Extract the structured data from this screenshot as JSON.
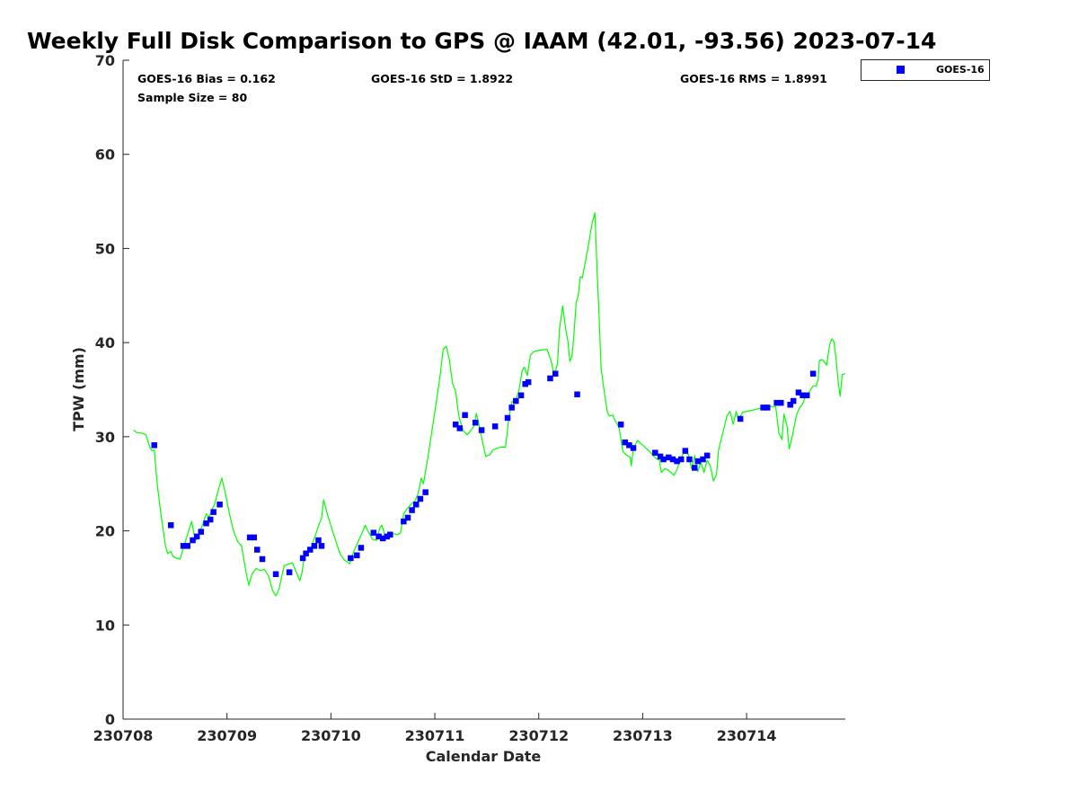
{
  "chart_data": {
    "type": "scatter",
    "title": "Weekly Full Disk Comparison to GPS @ IAAM (42.01, -93.56) 2023-07-14",
    "xlabel": "Calendar Date",
    "ylabel": "TPW (mm)",
    "xlim": [
      0,
      6.95
    ],
    "ylim": [
      0,
      70
    ],
    "x_units": "days after 230708",
    "x_ticks": [
      0,
      1,
      2,
      3,
      4,
      5,
      6
    ],
    "x_tick_labels": [
      "230708",
      "230709",
      "230710",
      "230711",
      "230712",
      "230713",
      "230714"
    ],
    "y_ticks": [
      0,
      10,
      20,
      30,
      40,
      50,
      60,
      70
    ],
    "y_tick_labels": [
      "0",
      "10",
      "20",
      "30",
      "40",
      "50",
      "60",
      "70"
    ],
    "grid": false,
    "legend_position": "top-right",
    "stats": {
      "bias": "GOES-16 Bias = 0.162",
      "std": "GOES-16 StD = 1.8922",
      "rms": "GOES-16 RMS = 1.8991",
      "sample_size": "Sample Size = 80"
    },
    "series": [
      {
        "name": "GOES-16",
        "type": "scatter",
        "color": "#0000ff",
        "marker": "square",
        "points": [
          [
            0.3,
            29.1
          ],
          [
            0.46,
            20.6
          ],
          [
            0.58,
            18.4
          ],
          [
            0.62,
            18.4
          ],
          [
            0.67,
            19.0
          ],
          [
            0.71,
            19.4
          ],
          [
            0.75,
            19.9
          ],
          [
            0.8,
            20.8
          ],
          [
            0.84,
            21.2
          ],
          [
            0.87,
            22.0
          ],
          [
            0.93,
            22.8
          ],
          [
            1.22,
            19.3
          ],
          [
            1.26,
            19.3
          ],
          [
            1.29,
            18.0
          ],
          [
            1.34,
            17.0
          ],
          [
            1.47,
            15.4
          ],
          [
            1.6,
            15.6
          ],
          [
            1.73,
            17.1
          ],
          [
            1.76,
            17.6
          ],
          [
            1.8,
            18.0
          ],
          [
            1.84,
            18.4
          ],
          [
            1.88,
            19.0
          ],
          [
            1.91,
            18.4
          ],
          [
            2.19,
            17.1
          ],
          [
            2.25,
            17.4
          ],
          [
            2.29,
            18.2
          ],
          [
            2.41,
            19.8
          ],
          [
            2.46,
            19.4
          ],
          [
            2.5,
            19.2
          ],
          [
            2.54,
            19.4
          ],
          [
            2.57,
            19.6
          ],
          [
            2.7,
            21.0
          ],
          [
            2.74,
            21.4
          ],
          [
            2.78,
            22.2
          ],
          [
            2.82,
            22.8
          ],
          [
            2.86,
            23.4
          ],
          [
            2.91,
            24.1
          ],
          [
            3.2,
            31.3
          ],
          [
            3.24,
            30.9
          ],
          [
            3.29,
            32.3
          ],
          [
            3.39,
            31.5
          ],
          [
            3.45,
            30.7
          ],
          [
            3.58,
            31.1
          ],
          [
            3.7,
            32.0
          ],
          [
            3.74,
            33.1
          ],
          [
            3.78,
            33.8
          ],
          [
            3.83,
            34.4
          ],
          [
            3.87,
            35.6
          ],
          [
            3.9,
            35.8
          ],
          [
            4.11,
            36.2
          ],
          [
            4.16,
            36.7
          ],
          [
            4.37,
            34.5
          ],
          [
            4.79,
            31.3
          ],
          [
            4.83,
            29.4
          ],
          [
            4.87,
            29.1
          ],
          [
            4.91,
            28.8
          ],
          [
            5.12,
            28.3
          ],
          [
            5.17,
            27.9
          ],
          [
            5.2,
            27.6
          ],
          [
            5.25,
            27.8
          ],
          [
            5.29,
            27.6
          ],
          [
            5.33,
            27.4
          ],
          [
            5.37,
            27.6
          ],
          [
            5.41,
            28.5
          ],
          [
            5.45,
            27.6
          ],
          [
            5.5,
            26.7
          ],
          [
            5.53,
            27.4
          ],
          [
            5.58,
            27.6
          ],
          [
            5.62,
            28.0
          ],
          [
            5.94,
            31.9
          ],
          [
            6.16,
            33.1
          ],
          [
            6.2,
            33.1
          ],
          [
            6.29,
            33.6
          ],
          [
            6.33,
            33.6
          ],
          [
            6.42,
            33.4
          ],
          [
            6.45,
            33.8
          ],
          [
            6.5,
            34.7
          ],
          [
            6.54,
            34.4
          ],
          [
            6.58,
            34.4
          ],
          [
            6.64,
            36.7
          ]
        ]
      },
      {
        "name": "",
        "type": "line",
        "color": "#00ff00",
        "points": [
          [
            0.1,
            30.7
          ],
          [
            0.14,
            30.4
          ],
          [
            0.18,
            30.4
          ],
          [
            0.22,
            30.2
          ],
          [
            0.26,
            28.8
          ],
          [
            0.28,
            28.5
          ],
          [
            0.3,
            28.6
          ],
          [
            0.33,
            24.8
          ],
          [
            0.37,
            21.3
          ],
          [
            0.41,
            18.3
          ],
          [
            0.43,
            17.6
          ],
          [
            0.46,
            17.8
          ],
          [
            0.48,
            17.3
          ],
          [
            0.51,
            17.1
          ],
          [
            0.55,
            17.0
          ],
          [
            0.58,
            18.2
          ],
          [
            0.62,
            19.6
          ],
          [
            0.66,
            21.0
          ],
          [
            0.68,
            19.8
          ],
          [
            0.7,
            19.0
          ],
          [
            0.73,
            19.7
          ],
          [
            0.77,
            20.8
          ],
          [
            0.8,
            21.8
          ],
          [
            0.83,
            21.5
          ],
          [
            0.86,
            22.4
          ],
          [
            0.88,
            22.8
          ],
          [
            0.92,
            24.5
          ],
          [
            0.95,
            25.6
          ],
          [
            0.98,
            24.2
          ],
          [
            1.02,
            22.0
          ],
          [
            1.06,
            20.1
          ],
          [
            1.1,
            18.9
          ],
          [
            1.14,
            18.4
          ],
          [
            1.18,
            15.8
          ],
          [
            1.21,
            14.2
          ],
          [
            1.24,
            15.4
          ],
          [
            1.28,
            16.0
          ],
          [
            1.32,
            15.8
          ],
          [
            1.36,
            15.9
          ],
          [
            1.4,
            15.2
          ],
          [
            1.44,
            13.6
          ],
          [
            1.47,
            13.1
          ],
          [
            1.5,
            13.8
          ],
          [
            1.55,
            16.3
          ],
          [
            1.6,
            16.5
          ],
          [
            1.63,
            16.6
          ],
          [
            1.66,
            15.8
          ],
          [
            1.7,
            14.7
          ],
          [
            1.72,
            15.5
          ],
          [
            1.75,
            17.6
          ],
          [
            1.8,
            17.9
          ],
          [
            1.84,
            19.2
          ],
          [
            1.88,
            20.5
          ],
          [
            1.91,
            21.4
          ],
          [
            1.93,
            23.3
          ],
          [
            1.97,
            21.6
          ],
          [
            2.01,
            20.2
          ],
          [
            2.05,
            18.8
          ],
          [
            2.09,
            17.5
          ],
          [
            2.13,
            16.9
          ],
          [
            2.18,
            16.5
          ],
          [
            2.22,
            17.8
          ],
          [
            2.26,
            18.8
          ],
          [
            2.3,
            19.8
          ],
          [
            2.33,
            20.6
          ],
          [
            2.36,
            19.9
          ],
          [
            2.4,
            19.1
          ],
          [
            2.44,
            19.0
          ],
          [
            2.47,
            20.3
          ],
          [
            2.49,
            20.6
          ],
          [
            2.52,
            19.5
          ],
          [
            2.56,
            19.3
          ],
          [
            2.6,
            19.7
          ],
          [
            2.64,
            19.6
          ],
          [
            2.67,
            19.8
          ],
          [
            2.7,
            21.8
          ],
          [
            2.73,
            22.3
          ],
          [
            2.77,
            22.8
          ],
          [
            2.81,
            23.2
          ],
          [
            2.84,
            24.0
          ],
          [
            2.87,
            25.6
          ],
          [
            2.89,
            25.0
          ],
          [
            2.93,
            27.6
          ],
          [
            2.97,
            30.5
          ],
          [
            3.01,
            33.4
          ],
          [
            3.05,
            36.4
          ],
          [
            3.08,
            39.3
          ],
          [
            3.11,
            39.6
          ],
          [
            3.14,
            38.2
          ],
          [
            3.17,
            35.7
          ],
          [
            3.2,
            34.8
          ],
          [
            3.23,
            32.2
          ],
          [
            3.27,
            30.7
          ],
          [
            3.31,
            30.2
          ],
          [
            3.35,
            30.7
          ],
          [
            3.38,
            31.2
          ],
          [
            3.4,
            32.5
          ],
          [
            3.43,
            31.0
          ],
          [
            3.46,
            29.4
          ],
          [
            3.49,
            27.9
          ],
          [
            3.53,
            28.1
          ],
          [
            3.56,
            28.6
          ],
          [
            3.6,
            28.8
          ],
          [
            3.64,
            28.9
          ],
          [
            3.68,
            28.9
          ],
          [
            3.71,
            31.8
          ],
          [
            3.74,
            33.7
          ],
          [
            3.78,
            33.9
          ],
          [
            3.81,
            35.0
          ],
          [
            3.84,
            37.0
          ],
          [
            3.86,
            37.4
          ],
          [
            3.89,
            36.5
          ],
          [
            3.92,
            38.7
          ],
          [
            3.96,
            39.1
          ],
          [
            4.02,
            39.2
          ],
          [
            4.08,
            39.3
          ],
          [
            4.12,
            38.0
          ],
          [
            4.15,
            36.5
          ],
          [
            4.18,
            37.8
          ],
          [
            4.2,
            41.5
          ],
          [
            4.23,
            43.9
          ],
          [
            4.26,
            41.4
          ],
          [
            4.28,
            40.2
          ],
          [
            4.3,
            38.0
          ],
          [
            4.32,
            38.6
          ],
          [
            4.34,
            41.1
          ],
          [
            4.36,
            44.3
          ],
          [
            4.38,
            45.0
          ],
          [
            4.4,
            47.0
          ],
          [
            4.42,
            46.9
          ],
          [
            4.45,
            48.7
          ],
          [
            4.48,
            50.5
          ],
          [
            4.51,
            52.5
          ],
          [
            4.54,
            53.8
          ],
          [
            4.56,
            48.0
          ],
          [
            4.58,
            43.0
          ],
          [
            4.6,
            37.3
          ],
          [
            4.63,
            34.8
          ],
          [
            4.66,
            32.6
          ],
          [
            4.68,
            32.2
          ],
          [
            4.71,
            32.3
          ],
          [
            4.74,
            31.6
          ],
          [
            4.77,
            31.1
          ],
          [
            4.79,
            29.8
          ],
          [
            4.81,
            28.4
          ],
          [
            4.84,
            28.1
          ],
          [
            4.88,
            27.8
          ],
          [
            4.89,
            26.9
          ],
          [
            4.91,
            28.7
          ],
          [
            4.95,
            29.6
          ],
          [
            4.99,
            29.2
          ],
          [
            5.03,
            28.8
          ],
          [
            5.07,
            28.4
          ],
          [
            5.11,
            27.9
          ],
          [
            5.14,
            27.6
          ],
          [
            5.16,
            27.5
          ],
          [
            5.18,
            26.2
          ],
          [
            5.21,
            26.6
          ],
          [
            5.24,
            26.5
          ],
          [
            5.27,
            26.2
          ],
          [
            5.3,
            25.9
          ],
          [
            5.33,
            26.5
          ],
          [
            5.36,
            27.6
          ],
          [
            5.4,
            28.4
          ],
          [
            5.44,
            28.1
          ],
          [
            5.47,
            26.6
          ],
          [
            5.5,
            28.0
          ],
          [
            5.53,
            26.3
          ],
          [
            5.56,
            27.3
          ],
          [
            5.59,
            26.2
          ],
          [
            5.62,
            27.5
          ],
          [
            5.65,
            26.9
          ],
          [
            5.68,
            25.3
          ],
          [
            5.71,
            26.0
          ],
          [
            5.73,
            28.6
          ],
          [
            5.78,
            30.8
          ],
          [
            5.81,
            32.2
          ],
          [
            5.84,
            32.7
          ],
          [
            5.87,
            31.3
          ],
          [
            5.9,
            32.7
          ],
          [
            5.92,
            31.8
          ],
          [
            5.96,
            32.6
          ],
          [
            6.05,
            32.8
          ],
          [
            6.12,
            33.0
          ],
          [
            6.2,
            33.2
          ],
          [
            6.28,
            33.2
          ],
          [
            6.31,
            30.4
          ],
          [
            6.34,
            29.7
          ],
          [
            6.36,
            32.4
          ],
          [
            6.39,
            31.1
          ],
          [
            6.41,
            28.7
          ],
          [
            6.44,
            30.1
          ],
          [
            6.48,
            32.3
          ],
          [
            6.51,
            33.1
          ],
          [
            6.54,
            33.5
          ],
          [
            6.57,
            34.4
          ],
          [
            6.6,
            34.7
          ],
          [
            6.64,
            35.4
          ],
          [
            6.67,
            35.4
          ],
          [
            6.69,
            36.2
          ],
          [
            6.7,
            38.1
          ],
          [
            6.73,
            38.2
          ],
          [
            6.77,
            37.6
          ],
          [
            6.8,
            39.8
          ],
          [
            6.82,
            40.4
          ],
          [
            6.84,
            40.1
          ],
          [
            6.86,
            38.3
          ],
          [
            6.88,
            36.0
          ],
          [
            6.9,
            34.3
          ],
          [
            6.92,
            36.6
          ],
          [
            6.95,
            36.7
          ]
        ]
      }
    ]
  }
}
